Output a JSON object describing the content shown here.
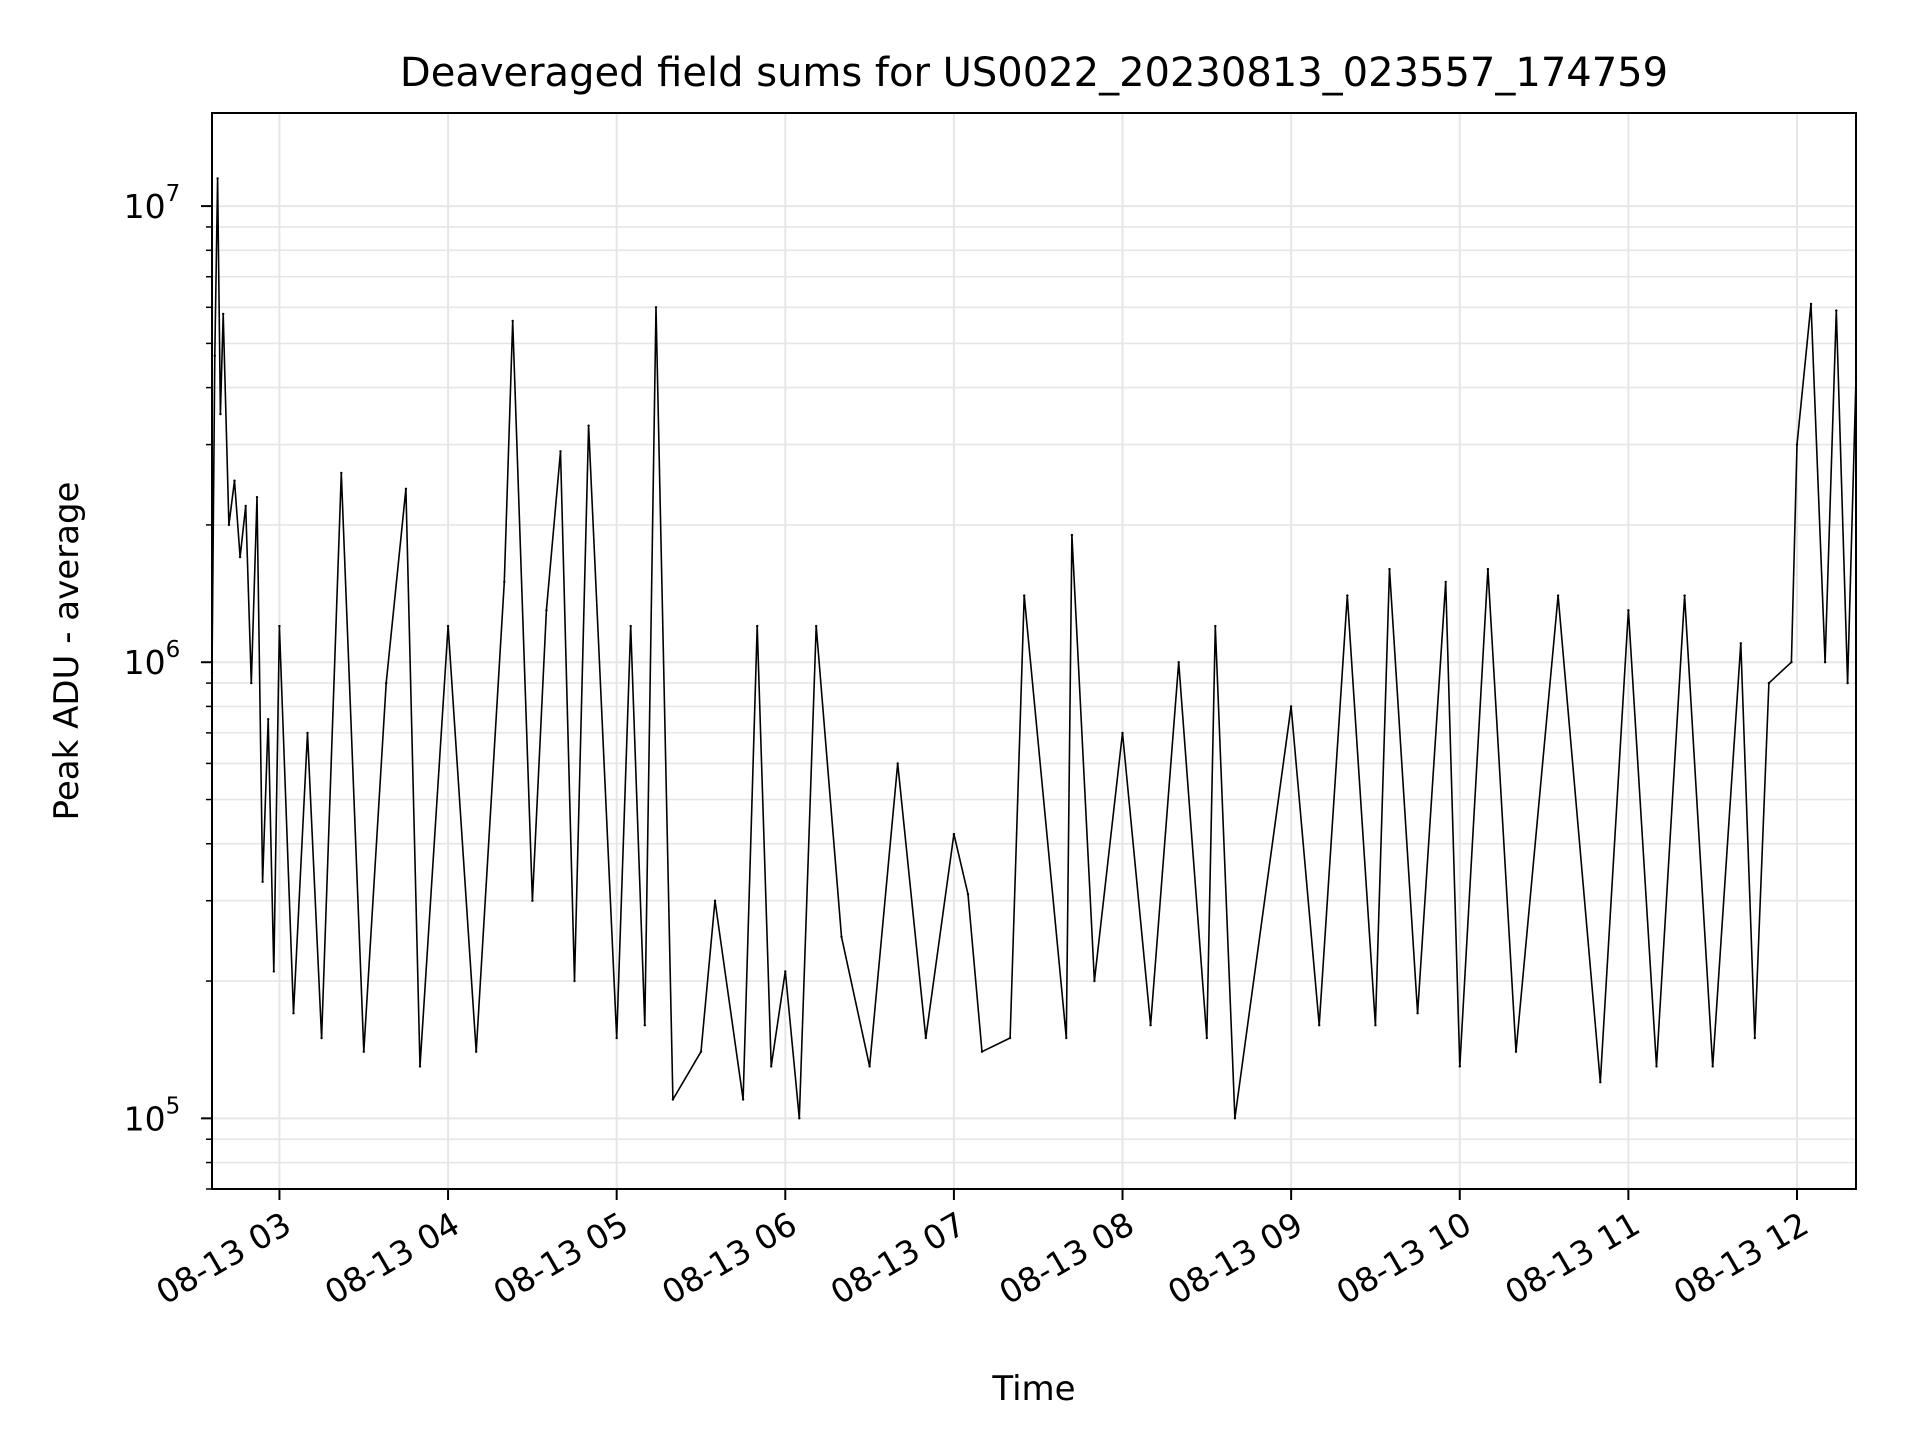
{
  "chart_data": {
    "type": "line",
    "title": "Deaveraged field sums for US0022_20230813_023557_174759",
    "xlabel": "Time",
    "ylabel": "Peak ADU - average",
    "yscale": "log",
    "ylim": [
      70000,
      16000000
    ],
    "xlim": [
      "2023-08-13 02:36",
      "2023-08-13 12:21"
    ],
    "grid": true,
    "line_color": "#000000",
    "grid_color": "#e6e6e6",
    "x_ticks": [
      {
        "value": "2023-08-13 03:00",
        "label": "08-13 03"
      },
      {
        "value": "2023-08-13 04:00",
        "label": "08-13 04"
      },
      {
        "value": "2023-08-13 05:00",
        "label": "08-13 05"
      },
      {
        "value": "2023-08-13 06:00",
        "label": "08-13 06"
      },
      {
        "value": "2023-08-13 07:00",
        "label": "08-13 07"
      },
      {
        "value": "2023-08-13 08:00",
        "label": "08-13 08"
      },
      {
        "value": "2023-08-13 09:00",
        "label": "08-13 09"
      },
      {
        "value": "2023-08-13 10:00",
        "label": "08-13 10"
      },
      {
        "value": "2023-08-13 11:00",
        "label": "08-13 11"
      },
      {
        "value": "2023-08-13 12:00",
        "label": "08-13 12"
      }
    ],
    "y_ticks": [
      {
        "value": 100000,
        "base": "10",
        "exponent": "5"
      },
      {
        "value": 1000000,
        "base": "10",
        "exponent": "6"
      },
      {
        "value": 10000000,
        "base": "10",
        "exponent": "7"
      }
    ],
    "series": [
      {
        "points": [
          [
            "2023-08-13 02:36",
            950000
          ],
          [
            "2023-08-13 02:37",
            4700000
          ],
          [
            "2023-08-13 02:38",
            11500000
          ],
          [
            "2023-08-13 02:39",
            3500000
          ],
          [
            "2023-08-13 02:40",
            5800000
          ],
          [
            "2023-08-13 02:42",
            2000000
          ],
          [
            "2023-08-13 02:44",
            2500000
          ],
          [
            "2023-08-13 02:46",
            1700000
          ],
          [
            "2023-08-13 02:48",
            2200000
          ],
          [
            "2023-08-13 02:50",
            900000
          ],
          [
            "2023-08-13 02:52",
            2300000
          ],
          [
            "2023-08-13 02:54",
            330000
          ],
          [
            "2023-08-13 02:56",
            750000
          ],
          [
            "2023-08-13 02:58",
            210000
          ],
          [
            "2023-08-13 03:00",
            1200000
          ],
          [
            "2023-08-13 03:05",
            170000
          ],
          [
            "2023-08-13 03:10",
            700000
          ],
          [
            "2023-08-13 03:15",
            150000
          ],
          [
            "2023-08-13 03:22",
            2600000
          ],
          [
            "2023-08-13 03:30",
            140000
          ],
          [
            "2023-08-13 03:38",
            900000
          ],
          [
            "2023-08-13 03:45",
            2400000
          ],
          [
            "2023-08-13 03:50",
            130000
          ],
          [
            "2023-08-13 04:00",
            1200000
          ],
          [
            "2023-08-13 04:10",
            140000
          ],
          [
            "2023-08-13 04:20",
            1500000
          ],
          [
            "2023-08-13 04:23",
            5600000
          ],
          [
            "2023-08-13 04:30",
            300000
          ],
          [
            "2023-08-13 04:35",
            1300000
          ],
          [
            "2023-08-13 04:40",
            2900000
          ],
          [
            "2023-08-13 04:45",
            200000
          ],
          [
            "2023-08-13 04:50",
            3300000
          ],
          [
            "2023-08-13 05:00",
            150000
          ],
          [
            "2023-08-13 05:05",
            1200000
          ],
          [
            "2023-08-13 05:10",
            160000
          ],
          [
            "2023-08-13 05:14",
            6000000
          ],
          [
            "2023-08-13 05:20",
            110000
          ],
          [
            "2023-08-13 05:30",
            140000
          ],
          [
            "2023-08-13 05:35",
            300000
          ],
          [
            "2023-08-13 05:45",
            110000
          ],
          [
            "2023-08-13 05:50",
            1200000
          ],
          [
            "2023-08-13 05:55",
            130000
          ],
          [
            "2023-08-13 06:00",
            210000
          ],
          [
            "2023-08-13 06:05",
            100000
          ],
          [
            "2023-08-13 06:11",
            1200000
          ],
          [
            "2023-08-13 06:20",
            250000
          ],
          [
            "2023-08-13 06:30",
            130000
          ],
          [
            "2023-08-13 06:40",
            600000
          ],
          [
            "2023-08-13 06:50",
            150000
          ],
          [
            "2023-08-13 07:00",
            420000
          ],
          [
            "2023-08-13 07:05",
            310000
          ],
          [
            "2023-08-13 07:10",
            140000
          ],
          [
            "2023-08-13 07:20",
            150000
          ],
          [
            "2023-08-13 07:25",
            1400000
          ],
          [
            "2023-08-13 07:40",
            150000
          ],
          [
            "2023-08-13 07:42",
            1900000
          ],
          [
            "2023-08-13 07:50",
            200000
          ],
          [
            "2023-08-13 08:00",
            700000
          ],
          [
            "2023-08-13 08:10",
            160000
          ],
          [
            "2023-08-13 08:20",
            1000000
          ],
          [
            "2023-08-13 08:30",
            150000
          ],
          [
            "2023-08-13 08:33",
            1200000
          ],
          [
            "2023-08-13 08:40",
            100000
          ],
          [
            "2023-08-13 09:00",
            800000
          ],
          [
            "2023-08-13 09:10",
            160000
          ],
          [
            "2023-08-13 09:20",
            1400000
          ],
          [
            "2023-08-13 09:30",
            160000
          ],
          [
            "2023-08-13 09:35",
            1600000
          ],
          [
            "2023-08-13 09:45",
            170000
          ],
          [
            "2023-08-13 09:55",
            1500000
          ],
          [
            "2023-08-13 10:00",
            130000
          ],
          [
            "2023-08-13 10:10",
            1600000
          ],
          [
            "2023-08-13 10:20",
            140000
          ],
          [
            "2023-08-13 10:35",
            1400000
          ],
          [
            "2023-08-13 10:50",
            120000
          ],
          [
            "2023-08-13 11:00",
            1300000
          ],
          [
            "2023-08-13 11:10",
            130000
          ],
          [
            "2023-08-13 11:20",
            1400000
          ],
          [
            "2023-08-13 11:30",
            130000
          ],
          [
            "2023-08-13 11:40",
            1100000
          ],
          [
            "2023-08-13 11:45",
            150000
          ],
          [
            "2023-08-13 11:50",
            900000
          ],
          [
            "2023-08-13 11:58",
            1000000
          ],
          [
            "2023-08-13 12:00",
            3000000
          ],
          [
            "2023-08-13 12:05",
            6100000
          ],
          [
            "2023-08-13 12:10",
            1000000
          ],
          [
            "2023-08-13 12:14",
            5900000
          ],
          [
            "2023-08-13 12:18",
            900000
          ],
          [
            "2023-08-13 12:21",
            4200000
          ]
        ]
      }
    ]
  }
}
